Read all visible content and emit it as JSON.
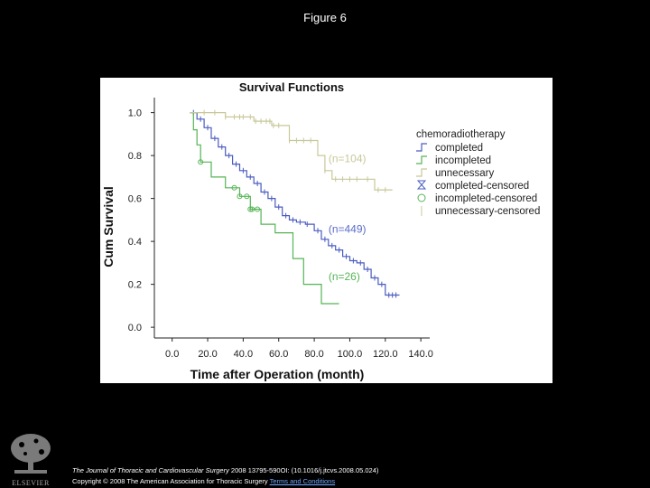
{
  "figure_title": "Figure 6",
  "footer": {
    "journal": "The Journal of Thoracic and Cardiovascular Surgery",
    "citation": " 2008 13795-590OI: (10.1016/j.jtcvs.2008.05.024)",
    "copyright": "Copyright © 2008 The American Association for Thoracic Surgery",
    "terms_link": "Terms and Conditions"
  },
  "logo": {
    "text": "ELSEVIER"
  },
  "chart_data": {
    "type": "line",
    "title": "Survival Functions",
    "xlabel": "Time after Operation (month)",
    "ylabel": "Cum Survival",
    "xlim": [
      -10,
      145
    ],
    "ylim": [
      -0.05,
      1.07
    ],
    "xticks": [
      "0.0",
      "20.0",
      "40.0",
      "60.0",
      "80.0",
      "100.0",
      "120.0",
      "140.0"
    ],
    "xtick_values": [
      0,
      20,
      40,
      60,
      80,
      100,
      120,
      140
    ],
    "yticks": [
      "0.0",
      "0.2",
      "0.4",
      "0.6",
      "0.8",
      "1.0"
    ],
    "ytick_values": [
      0,
      0.2,
      0.4,
      0.6,
      0.8,
      1.0
    ],
    "legend_title": "chemoradiotherapy",
    "legend_position": "right",
    "legend": [
      "completed",
      "incompleted",
      "unnecessary",
      "completed-censored",
      "incompleted-censored",
      "unnecessary-censored"
    ],
    "annotations": [
      {
        "text": "(n=104)",
        "x": 88,
        "y": 0.77,
        "color": "#c8c89a"
      },
      {
        "text": "(n=449)",
        "x": 88,
        "y": 0.44,
        "color": "#5a6cc8"
      },
      {
        "text": "(n=26)",
        "x": 88,
        "y": 0.22,
        "color": "#55b455"
      }
    ],
    "series": [
      {
        "name": "completed",
        "color": "#4a5cc0",
        "steps": [
          [
            10,
            1.0
          ],
          [
            14,
            0.97
          ],
          [
            18,
            0.93
          ],
          [
            22,
            0.88
          ],
          [
            26,
            0.84
          ],
          [
            30,
            0.8
          ],
          [
            34,
            0.76
          ],
          [
            38,
            0.73
          ],
          [
            42,
            0.7
          ],
          [
            46,
            0.67
          ],
          [
            50,
            0.63
          ],
          [
            54,
            0.6
          ],
          [
            58,
            0.56
          ],
          [
            62,
            0.52
          ],
          [
            66,
            0.5
          ],
          [
            70,
            0.49
          ],
          [
            75,
            0.48
          ],
          [
            80,
            0.45
          ],
          [
            84,
            0.41
          ],
          [
            88,
            0.38
          ],
          [
            92,
            0.36
          ],
          [
            96,
            0.33
          ],
          [
            100,
            0.31
          ],
          [
            104,
            0.3
          ],
          [
            108,
            0.27
          ],
          [
            112,
            0.23
          ],
          [
            116,
            0.2
          ],
          [
            120,
            0.15
          ],
          [
            124,
            0.15
          ],
          [
            128,
            0.15
          ]
        ],
        "censored_x": [
          12,
          16,
          20,
          24,
          28,
          32,
          36,
          40,
          44,
          48,
          52,
          56,
          60,
          64,
          68,
          72,
          76,
          82,
          86,
          90,
          94,
          98,
          102,
          106,
          110,
          114,
          118,
          122,
          124,
          126
        ]
      },
      {
        "name": "incompleted",
        "color": "#55b455",
        "steps": [
          [
            10,
            1.0
          ],
          [
            12,
            0.92
          ],
          [
            14,
            0.85
          ],
          [
            16,
            0.77
          ],
          [
            22,
            0.7
          ],
          [
            30,
            0.65
          ],
          [
            38,
            0.61
          ],
          [
            44,
            0.55
          ],
          [
            50,
            0.48
          ],
          [
            58,
            0.44
          ],
          [
            68,
            0.32
          ],
          [
            74,
            0.2
          ],
          [
            84,
            0.2
          ],
          [
            84,
            0.11
          ],
          [
            94,
            0.11
          ]
        ],
        "censored_x": [
          16,
          35,
          38,
          42,
          44,
          45,
          48
        ]
      },
      {
        "name": "unnecessary",
        "color": "#c8c89a",
        "steps": [
          [
            10,
            1.0
          ],
          [
            30,
            0.98
          ],
          [
            46,
            0.96
          ],
          [
            56,
            0.94
          ],
          [
            66,
            0.87
          ],
          [
            82,
            0.8
          ],
          [
            86,
            0.73
          ],
          [
            90,
            0.69
          ],
          [
            106,
            0.69
          ],
          [
            114,
            0.64
          ],
          [
            124,
            0.64
          ]
        ],
        "censored_x": [
          18,
          24,
          30,
          35,
          38,
          40,
          44,
          47,
          50,
          53,
          55,
          57,
          60,
          66,
          70,
          74,
          78,
          86,
          92,
          96,
          100,
          104,
          110,
          116,
          120
        ]
      }
    ]
  }
}
